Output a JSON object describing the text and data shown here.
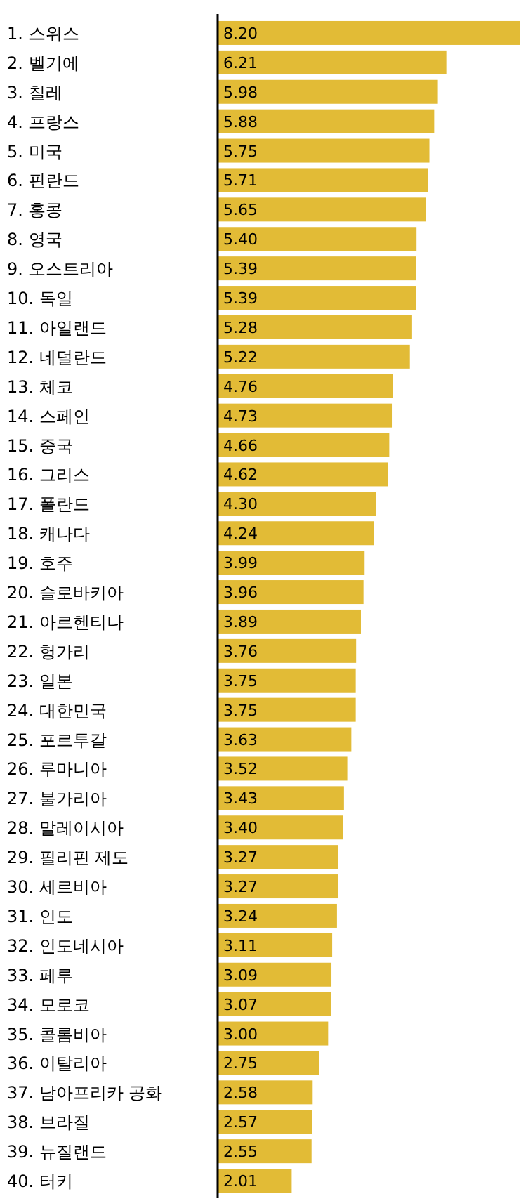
{
  "chart_data": {
    "type": "bar",
    "orientation": "horizontal",
    "color": "#e2bb36",
    "value_labels": [
      "8.20",
      "6.21",
      "5.98",
      "5.88",
      "5.75",
      "5.71",
      "5.65",
      "5.40",
      "5.39",
      "5.39",
      "5.28",
      "5.22",
      "4.76",
      "4.73",
      "4.66",
      "4.62",
      "4.30",
      "4.24",
      "3.99",
      "3.96",
      "3.89",
      "3.76",
      "3.75",
      "3.75",
      "3.63",
      "3.52",
      "3.43",
      "3.40",
      "3.27",
      "3.27",
      "3.24",
      "3.11",
      "3.09",
      "3.07",
      "3.00",
      "2.75",
      "2.58",
      "2.57",
      "2.55",
      "2.01"
    ],
    "categories": [
      "1. 스위스",
      "2. 벨기에",
      "3. 칠레",
      "4. 프랑스",
      "5. 미국",
      "6. 핀란드",
      "7. 홍콩",
      "8. 영국",
      "9. 오스트리아",
      "10. 독일",
      "11. 아일랜드",
      "12. 네덜란드",
      "13. 체코",
      "14. 스페인",
      "15. 중국",
      "16. 그리스",
      "17. 폴란드",
      "18. 캐나다",
      "19. 호주",
      "20. 슬로바키아",
      "21. 아르헨티나",
      "22. 헝가리",
      "23. 일본",
      "24. 대한민국",
      "25. 포르투갈",
      "26. 루마니아",
      "27. 불가리아",
      "28. 말레이시아",
      "29. 필리핀 제도",
      "30. 세르비아",
      "31. 인도",
      "32. 인도네시아",
      "33. 페루",
      "34. 모로코",
      "35. 콜롬비아",
      "36. 이탈리아",
      "37. 남아프리카 공화",
      "38. 브라질",
      "39. 뉴질랜드",
      "40. 터키"
    ],
    "values": [
      8.2,
      6.21,
      5.98,
      5.88,
      5.75,
      5.71,
      5.65,
      5.4,
      5.39,
      5.39,
      5.28,
      5.22,
      4.76,
      4.73,
      4.66,
      4.62,
      4.3,
      4.24,
      3.99,
      3.96,
      3.89,
      3.76,
      3.75,
      3.75,
      3.63,
      3.52,
      3.43,
      3.4,
      3.27,
      3.27,
      3.24,
      3.11,
      3.09,
      3.07,
      3.0,
      2.75,
      2.58,
      2.57,
      2.55,
      2.01
    ]
  }
}
